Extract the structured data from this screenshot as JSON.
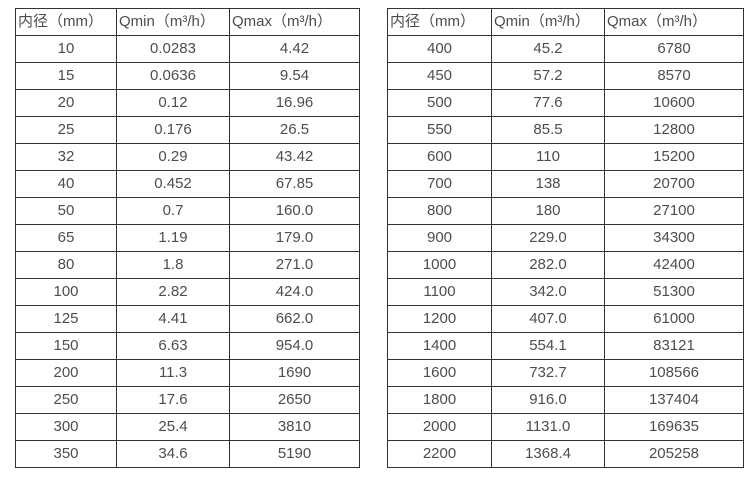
{
  "page": {
    "background_color": "#ffffff",
    "text_color": "#4d4d4d",
    "border_color": "#333333"
  },
  "tables": [
    {
      "name": "flow-spec-table-small-diameters",
      "headers": [
        "内径（mm）",
        "Qmin（m³/h）",
        "Qmax（m³/h）"
      ],
      "rows": [
        [
          "10",
          "0.0283",
          "4.42"
        ],
        [
          "15",
          "0.0636",
          "9.54"
        ],
        [
          "20",
          "0.12",
          "16.96"
        ],
        [
          "25",
          "0.176",
          "26.5"
        ],
        [
          "32",
          "0.29",
          "43.42"
        ],
        [
          "40",
          "0.452",
          "67.85"
        ],
        [
          "50",
          "0.7",
          "160.0"
        ],
        [
          "65",
          "1.19",
          "179.0"
        ],
        [
          "80",
          "1.8",
          "271.0"
        ],
        [
          "100",
          "2.82",
          "424.0"
        ],
        [
          "125",
          "4.41",
          "662.0"
        ],
        [
          "150",
          "6.63",
          "954.0"
        ],
        [
          "200",
          "11.3",
          "1690"
        ],
        [
          "250",
          "17.6",
          "2650"
        ],
        [
          "300",
          "25.4",
          "3810"
        ],
        [
          "350",
          "34.6",
          "5190"
        ]
      ]
    },
    {
      "name": "flow-spec-table-large-diameters",
      "headers": [
        "内径（mm）",
        "Qmin（m³/h）",
        "Qmax（m³/h）"
      ],
      "rows": [
        [
          "400",
          "45.2",
          "6780"
        ],
        [
          "450",
          "57.2",
          "8570"
        ],
        [
          "500",
          "77.6",
          "10600"
        ],
        [
          "550",
          "85.5",
          "12800"
        ],
        [
          "600",
          "110",
          "15200"
        ],
        [
          "700",
          "138",
          "20700"
        ],
        [
          "800",
          "180",
          "27100"
        ],
        [
          "900",
          "229.0",
          "34300"
        ],
        [
          "1000",
          "282.0",
          "42400"
        ],
        [
          "1100",
          "342.0",
          "51300"
        ],
        [
          "1200",
          "407.0",
          "61000"
        ],
        [
          "1400",
          "554.1",
          "83121"
        ],
        [
          "1600",
          "732.7",
          "108566"
        ],
        [
          "1800",
          "916.0",
          "137404"
        ],
        [
          "2000",
          "1131.0",
          "169635"
        ],
        [
          "2200",
          "1368.4",
          "205258"
        ]
      ]
    }
  ]
}
